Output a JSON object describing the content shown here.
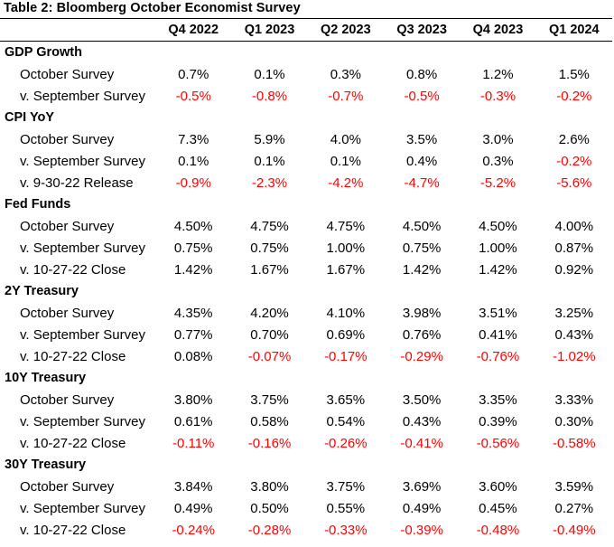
{
  "title": "Table 2: Bloomberg October Economist Survey",
  "columns": [
    "Q4 2022",
    "Q1 2023",
    "Q2 2023",
    "Q3 2023",
    "Q4 2023",
    "Q1 2024"
  ],
  "colors": {
    "negative": "#ff0000",
    "text": "#000000"
  },
  "sections": [
    {
      "name": "GDP Growth",
      "rows": [
        {
          "label": "October Survey",
          "values": [
            "0.7%",
            "0.1%",
            "0.3%",
            "0.8%",
            "1.2%",
            "1.5%"
          ]
        },
        {
          "label": "v. September Survey",
          "values": [
            "-0.5%",
            "-0.8%",
            "-0.7%",
            "-0.5%",
            "-0.3%",
            "-0.2%"
          ]
        }
      ]
    },
    {
      "name": "CPI YoY",
      "rows": [
        {
          "label": "October Survey",
          "values": [
            "7.3%",
            "5.9%",
            "4.0%",
            "3.5%",
            "3.0%",
            "2.6%"
          ]
        },
        {
          "label": "v. September Survey",
          "values": [
            "0.1%",
            "0.1%",
            "0.1%",
            "0.4%",
            "0.3%",
            "-0.2%"
          ]
        },
        {
          "label": "v. 9-30-22 Release",
          "values": [
            "-0.9%",
            "-2.3%",
            "-4.2%",
            "-4.7%",
            "-5.2%",
            "-5.6%"
          ]
        }
      ]
    },
    {
      "name": "Fed Funds",
      "rows": [
        {
          "label": "October Survey",
          "values": [
            "4.50%",
            "4.75%",
            "4.75%",
            "4.50%",
            "4.50%",
            "4.00%"
          ]
        },
        {
          "label": "v. September Survey",
          "values": [
            "0.75%",
            "0.75%",
            "1.00%",
            "0.75%",
            "1.00%",
            "0.87%"
          ]
        },
        {
          "label": "v. 10-27-22 Close",
          "values": [
            "1.42%",
            "1.67%",
            "1.67%",
            "1.42%",
            "1.42%",
            "0.92%"
          ]
        }
      ]
    },
    {
      "name": "2Y Treasury",
      "rows": [
        {
          "label": "October Survey",
          "values": [
            "4.35%",
            "4.20%",
            "4.10%",
            "3.98%",
            "3.51%",
            "3.25%"
          ]
        },
        {
          "label": "v. September Survey",
          "values": [
            "0.77%",
            "0.70%",
            "0.69%",
            "0.76%",
            "0.41%",
            "0.43%"
          ]
        },
        {
          "label": "v. 10-27-22 Close",
          "values": [
            "0.08%",
            "-0.07%",
            "-0.17%",
            "-0.29%",
            "-0.76%",
            "-1.02%"
          ]
        }
      ]
    },
    {
      "name": "10Y Treasury",
      "rows": [
        {
          "label": "October Survey",
          "values": [
            "3.80%",
            "3.75%",
            "3.65%",
            "3.50%",
            "3.35%",
            "3.33%"
          ]
        },
        {
          "label": "v. September Survey",
          "values": [
            "0.61%",
            "0.58%",
            "0.54%",
            "0.43%",
            "0.39%",
            "0.30%"
          ]
        },
        {
          "label": "v. 10-27-22 Close",
          "values": [
            "-0.11%",
            "-0.16%",
            "-0.26%",
            "-0.41%",
            "-0.56%",
            "-0.58%"
          ]
        }
      ]
    },
    {
      "name": "30Y Treasury",
      "rows": [
        {
          "label": "October Survey",
          "values": [
            "3.84%",
            "3.80%",
            "3.75%",
            "3.69%",
            "3.60%",
            "3.59%"
          ]
        },
        {
          "label": "v. September Survey",
          "values": [
            "0.49%",
            "0.50%",
            "0.55%",
            "0.49%",
            "0.45%",
            "0.27%"
          ]
        },
        {
          "label": "v. 10-27-22 Close",
          "values": [
            "-0.24%",
            "-0.28%",
            "-0.33%",
            "-0.39%",
            "-0.48%",
            "-0.49%"
          ]
        }
      ]
    }
  ]
}
